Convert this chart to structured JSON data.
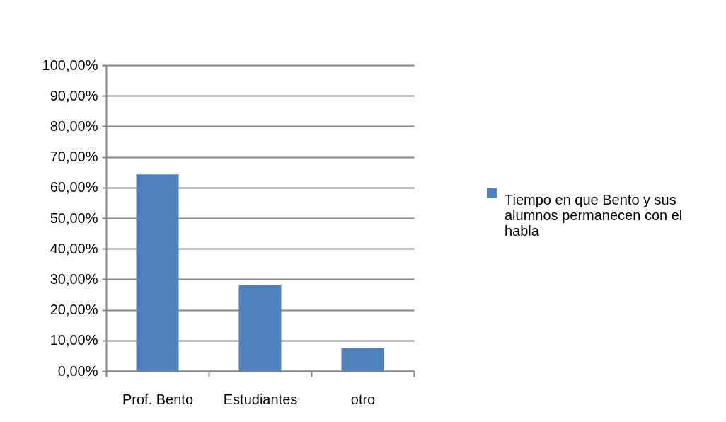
{
  "chart_data": {
    "type": "bar",
    "categories": [
      "Prof. Bento",
      "Estudiantes",
      "otro"
    ],
    "series": [
      {
        "name": "Tiempo en que Bento y sus alumnos permanecen con el habla",
        "color": "#4f81bd",
        "values": [
          64.3,
          28.0,
          7.4
        ]
      }
    ],
    "ylim": [
      0,
      100
    ],
    "yticks": [
      {
        "value": 0,
        "label": "0,00%"
      },
      {
        "value": 10,
        "label": "10,00%"
      },
      {
        "value": 20,
        "label": "20,00%"
      },
      {
        "value": 30,
        "label": "30,00%"
      },
      {
        "value": 40,
        "label": "40,00%"
      },
      {
        "value": 50,
        "label": "50,00%"
      },
      {
        "value": 60,
        "label": "60,00%"
      },
      {
        "value": 70,
        "label": "70,00%"
      },
      {
        "value": 80,
        "label": "80,00%"
      },
      {
        "value": 90,
        "label": "90,00%"
      },
      {
        "value": 100,
        "label": "100,00%"
      }
    ],
    "grid": "y",
    "legend": "right"
  }
}
